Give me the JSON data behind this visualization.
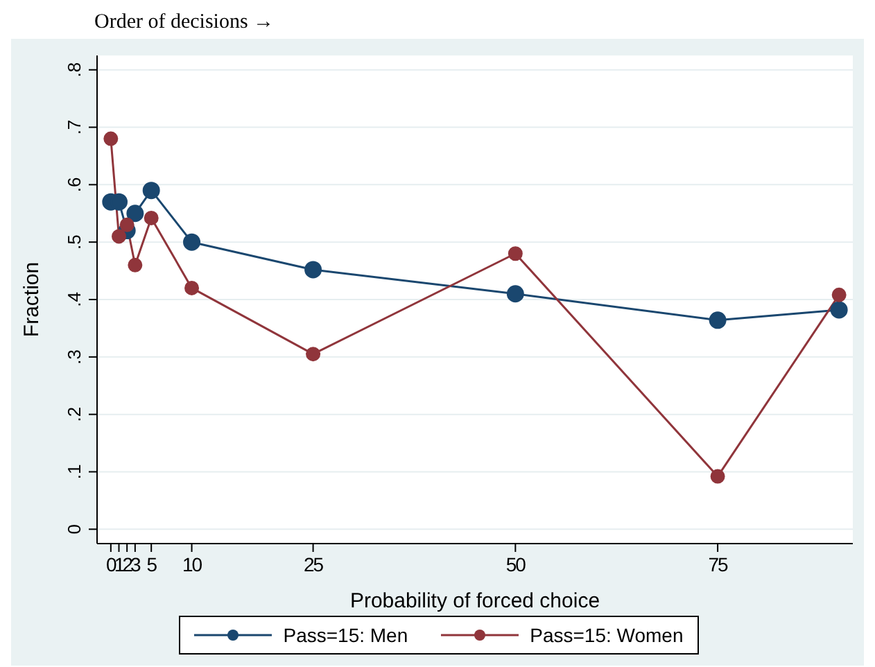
{
  "chart_data": {
    "type": "line",
    "title": "Order of decisions →",
    "xlabel": "Probability of forced choice",
    "ylabel": "Fraction",
    "x": [
      0,
      1,
      2,
      3,
      5,
      10,
      25,
      50,
      75,
      90
    ],
    "series": [
      {
        "name": "Pass=15: Men",
        "color": "#1a476f",
        "values": [
          0.57,
          0.57,
          0.52,
          0.55,
          0.59,
          0.5,
          0.452,
          0.41,
          0.364,
          0.382
        ]
      },
      {
        "name": "Pass=15: Women",
        "color": "#90353b",
        "values": [
          0.68,
          0.51,
          0.53,
          0.46,
          0.542,
          0.42,
          0.305,
          0.48,
          0.092,
          0.408
        ]
      }
    ],
    "xlim": [
      -1.7,
      91.7
    ],
    "xticks": [
      0,
      1,
      2,
      3,
      5,
      10,
      25,
      50,
      75
    ],
    "ylim": [
      -0.025,
      0.825
    ],
    "yticks": [
      0,
      {
        "value": 0.1,
        "label": ".1"
      },
      {
        "value": 0.2,
        "label": ".2"
      },
      {
        "value": 0.3,
        "label": ".3"
      },
      {
        "value": 0.4,
        "label": ".4"
      },
      {
        "value": 0.5,
        "label": ".5"
      },
      {
        "value": 0.6,
        "label": ".6"
      },
      {
        "value": 0.7,
        "label": ".7"
      },
      {
        "value": 0.8,
        "label": ".8"
      }
    ],
    "grid": "y",
    "legend": "bottom",
    "marker": "circle",
    "line_style": "solid"
  }
}
